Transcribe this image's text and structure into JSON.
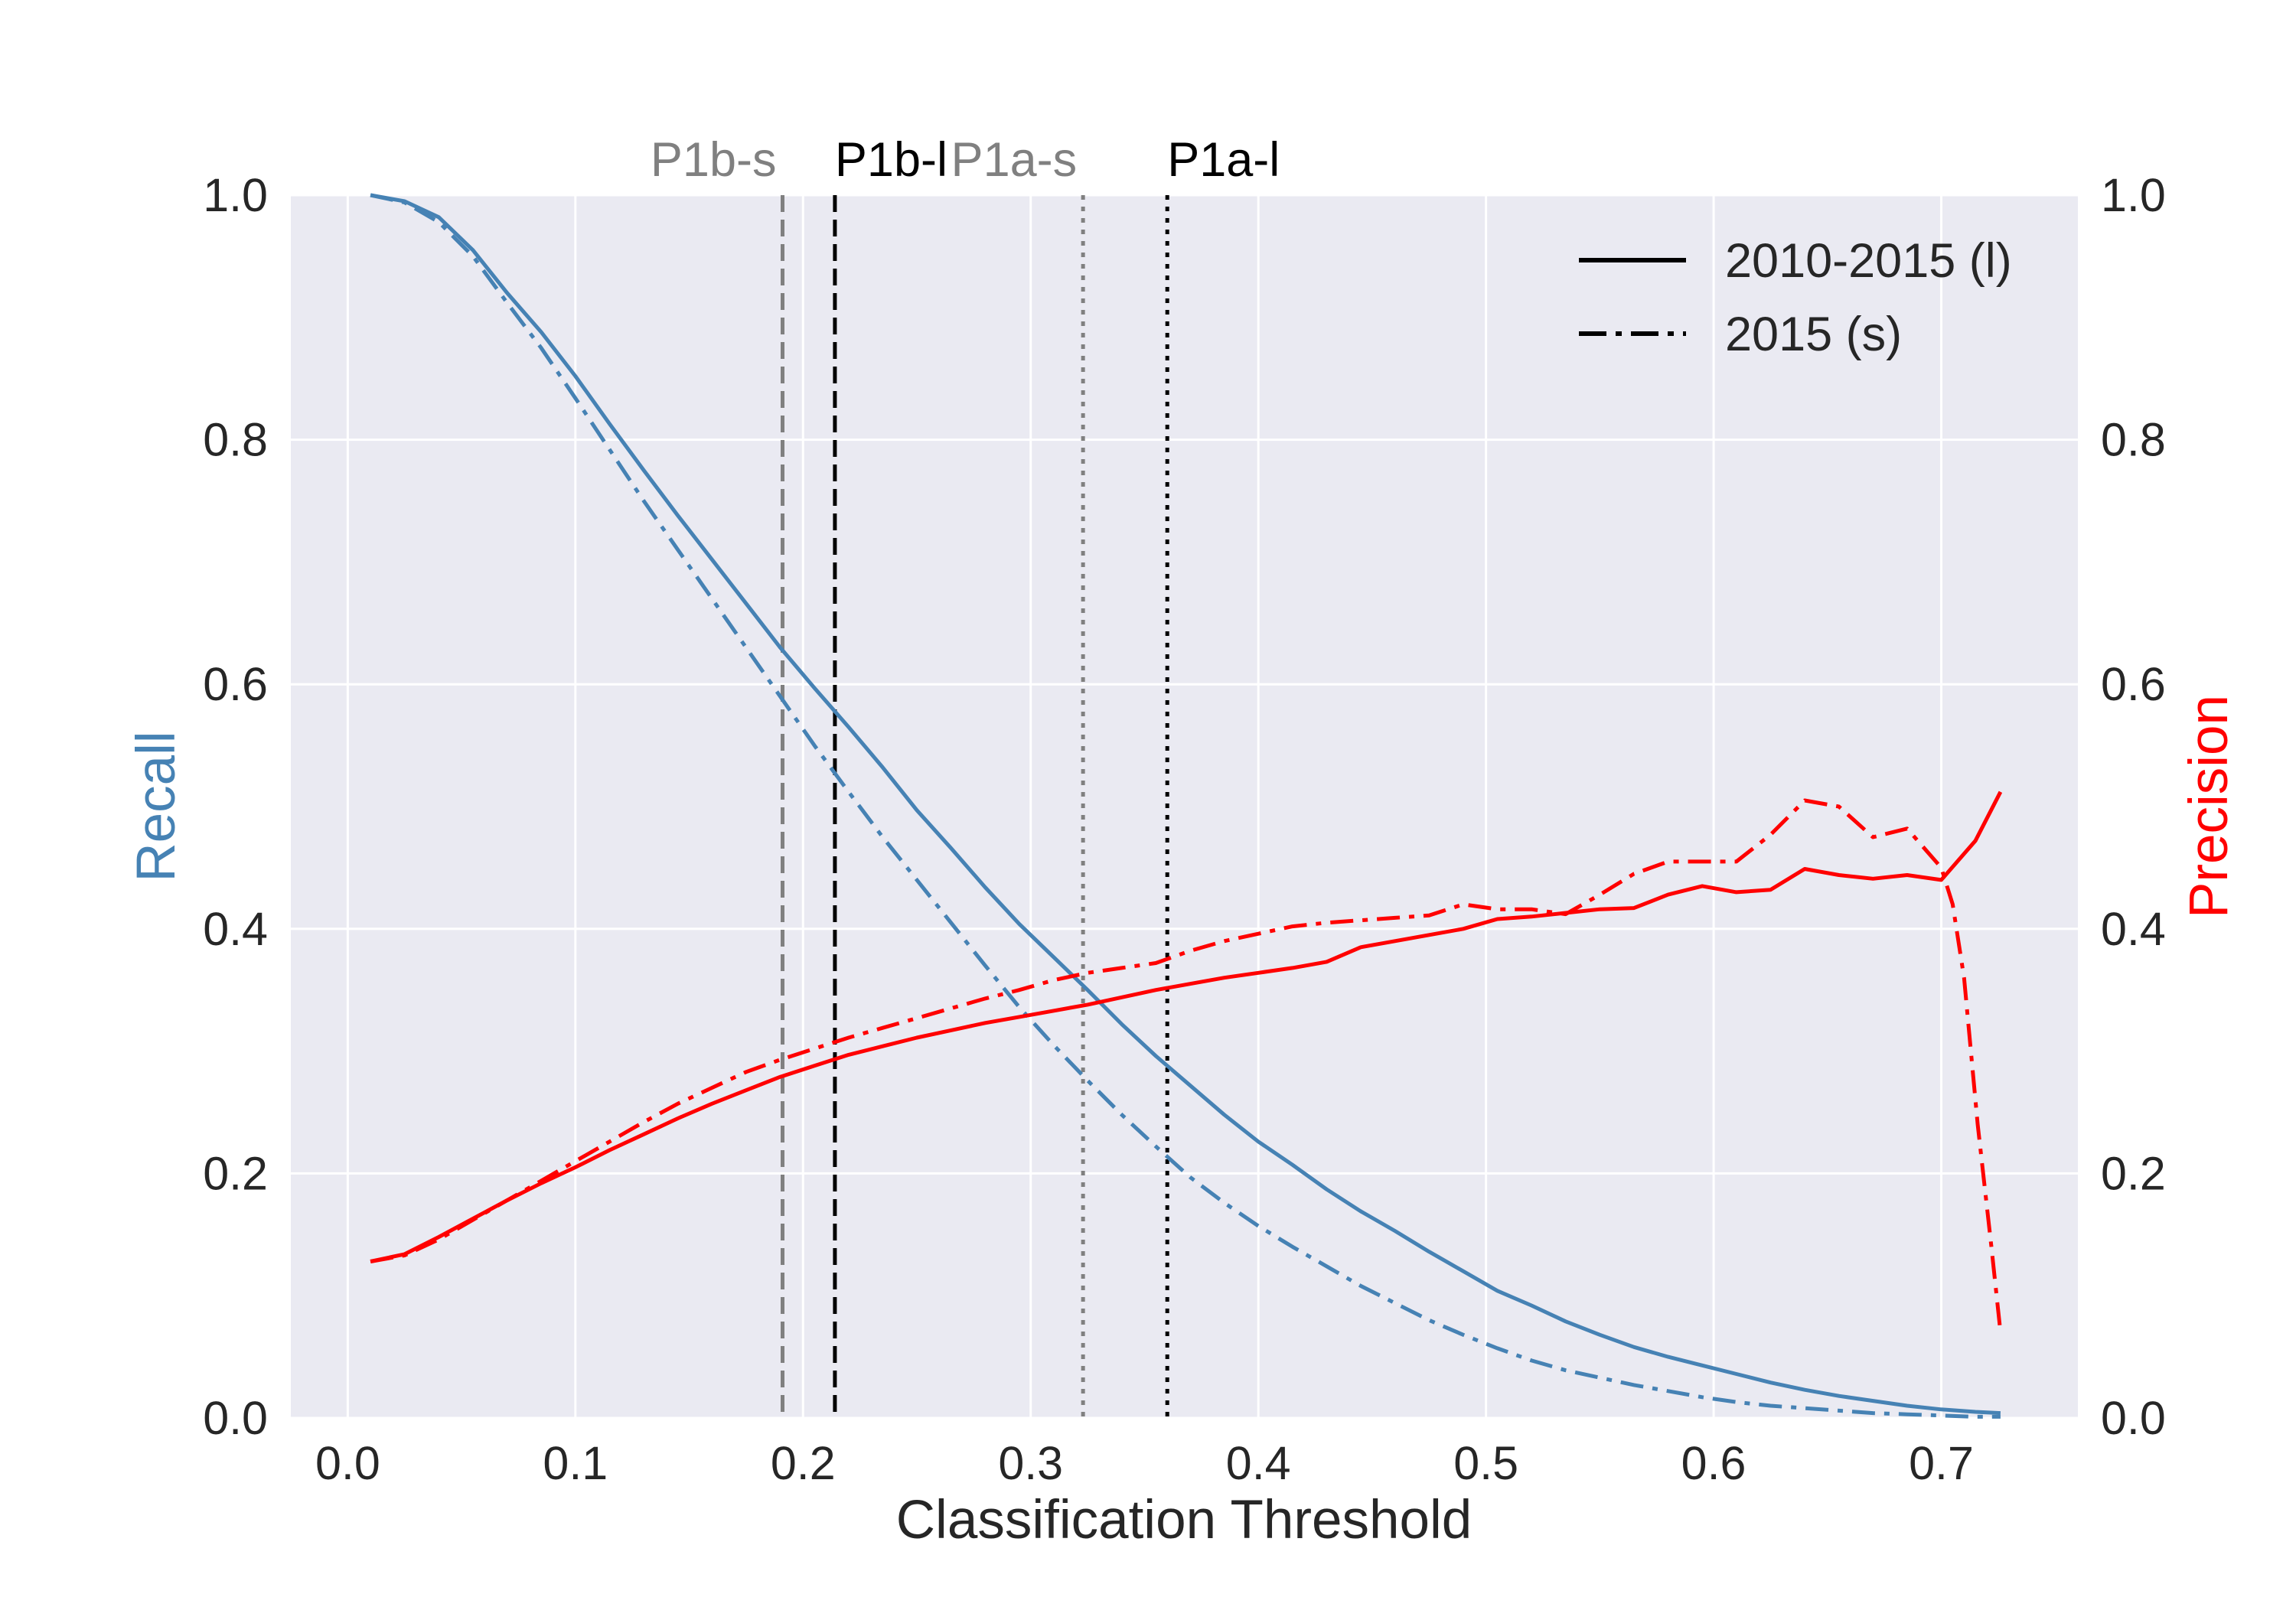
{
  "chart_data": {
    "type": "line",
    "xlabel": "Classification Threshold",
    "ylabel_left": "Recall",
    "ylabel_right": "Precision",
    "xlim": [
      -0.025,
      0.76
    ],
    "ylim_left": [
      0.0,
      1.0
    ],
    "ylim_right": [
      0.0,
      1.0
    ],
    "x_ticks": [
      0.0,
      0.1,
      0.2,
      0.3,
      0.4,
      0.5,
      0.6,
      0.7
    ],
    "x_tick_labels": [
      "0.0",
      "0.1",
      "0.2",
      "0.3",
      "0.4",
      "0.5",
      "0.6",
      "0.7"
    ],
    "y_ticks": [
      0.0,
      0.2,
      0.4,
      0.6,
      0.8,
      1.0
    ],
    "y_tick_labels_left": [
      "0.0",
      "0.2",
      "0.4",
      "0.6",
      "0.8",
      "1.0"
    ],
    "y_tick_labels_right": [
      "0.0",
      "0.2",
      "0.4",
      "0.6",
      "0.8",
      "1.0"
    ],
    "grid": true,
    "legend_position": "top-right",
    "colors": {
      "recall": "#4682b4",
      "precision": "#ff0000",
      "background": "#eaeaf2",
      "grid": "#ffffff"
    },
    "legend": [
      {
        "label": "2010-2015 (l)",
        "style": "solid"
      },
      {
        "label": "2015 (s)",
        "style": "dashdot"
      }
    ],
    "vertical_lines": [
      {
        "label": "P1b-s",
        "x": 0.191,
        "style": "dashed",
        "color": "#808080"
      },
      {
        "label": "P1b-l",
        "x": 0.214,
        "style": "dashed",
        "color": "#000000"
      },
      {
        "label": "P1a-s",
        "x": 0.323,
        "style": "dotted",
        "color": "#808080"
      },
      {
        "label": "P1a-l",
        "x": 0.36,
        "style": "dotted",
        "color": "#000000"
      }
    ],
    "series": [
      {
        "axis": "left",
        "style": "solid",
        "color": "#4682b4",
        "x": [
          0.01,
          0.025,
          0.04,
          0.055,
          0.07,
          0.085,
          0.1,
          0.115,
          0.13,
          0.145,
          0.16,
          0.175,
          0.19,
          0.205,
          0.22,
          0.235,
          0.25,
          0.265,
          0.28,
          0.295,
          0.31,
          0.325,
          0.34,
          0.355,
          0.37,
          0.385,
          0.4,
          0.415,
          0.43,
          0.445,
          0.46,
          0.475,
          0.49,
          0.505,
          0.52,
          0.535,
          0.55,
          0.565,
          0.58,
          0.595,
          0.61,
          0.625,
          0.64,
          0.655,
          0.67,
          0.685,
          0.7,
          0.715,
          0.726
        ],
        "y": [
          1.0,
          0.995,
          0.982,
          0.955,
          0.92,
          0.888,
          0.852,
          0.813,
          0.775,
          0.738,
          0.702,
          0.666,
          0.63,
          0.597,
          0.565,
          0.532,
          0.497,
          0.466,
          0.434,
          0.404,
          0.377,
          0.35,
          0.322,
          0.296,
          0.272,
          0.248,
          0.226,
          0.207,
          0.187,
          0.169,
          0.153,
          0.136,
          0.12,
          0.104,
          0.092,
          0.079,
          0.068,
          0.058,
          0.05,
          0.043,
          0.036,
          0.029,
          0.023,
          0.018,
          0.014,
          0.01,
          0.007,
          0.005,
          0.004
        ]
      },
      {
        "axis": "left",
        "style": "dashdot",
        "color": "#4682b4",
        "x": [
          0.01,
          0.025,
          0.04,
          0.055,
          0.07,
          0.085,
          0.1,
          0.115,
          0.13,
          0.145,
          0.16,
          0.175,
          0.19,
          0.205,
          0.22,
          0.235,
          0.25,
          0.265,
          0.28,
          0.295,
          0.31,
          0.325,
          0.34,
          0.355,
          0.37,
          0.385,
          0.4,
          0.415,
          0.43,
          0.445,
          0.46,
          0.475,
          0.49,
          0.505,
          0.52,
          0.535,
          0.55,
          0.565,
          0.58,
          0.595,
          0.61,
          0.625,
          0.64,
          0.655,
          0.67,
          0.685,
          0.7,
          0.715,
          0.726
        ],
        "y": [
          1.0,
          0.994,
          0.978,
          0.95,
          0.912,
          0.875,
          0.834,
          0.792,
          0.75,
          0.71,
          0.67,
          0.63,
          0.59,
          0.55,
          0.512,
          0.475,
          0.44,
          0.405,
          0.37,
          0.336,
          0.305,
          0.276,
          0.248,
          0.222,
          0.197,
          0.176,
          0.157,
          0.14,
          0.124,
          0.108,
          0.094,
          0.08,
          0.068,
          0.057,
          0.047,
          0.039,
          0.033,
          0.027,
          0.022,
          0.017,
          0.013,
          0.01,
          0.008,
          0.006,
          0.004,
          0.003,
          0.002,
          0.001,
          0.001
        ]
      },
      {
        "axis": "right",
        "style": "solid",
        "color": "#ff0000",
        "x": [
          0.01,
          0.025,
          0.04,
          0.055,
          0.07,
          0.085,
          0.1,
          0.115,
          0.13,
          0.145,
          0.16,
          0.175,
          0.19,
          0.205,
          0.22,
          0.235,
          0.25,
          0.265,
          0.28,
          0.295,
          0.31,
          0.325,
          0.34,
          0.355,
          0.37,
          0.385,
          0.4,
          0.415,
          0.43,
          0.445,
          0.46,
          0.475,
          0.49,
          0.505,
          0.52,
          0.535,
          0.55,
          0.565,
          0.58,
          0.595,
          0.61,
          0.625,
          0.64,
          0.655,
          0.67,
          0.685,
          0.7,
          0.715,
          0.726
        ],
        "y": [
          0.128,
          0.134,
          0.148,
          0.163,
          0.178,
          0.192,
          0.205,
          0.219,
          0.232,
          0.245,
          0.257,
          0.268,
          0.279,
          0.288,
          0.297,
          0.304,
          0.311,
          0.317,
          0.323,
          0.328,
          0.333,
          0.338,
          0.344,
          0.35,
          0.355,
          0.36,
          0.364,
          0.368,
          0.373,
          0.385,
          0.39,
          0.395,
          0.4,
          0.408,
          0.41,
          0.413,
          0.416,
          0.417,
          0.428,
          0.435,
          0.43,
          0.432,
          0.449,
          0.444,
          0.441,
          0.444,
          0.44,
          0.472,
          0.512
        ]
      },
      {
        "axis": "right",
        "style": "dashdot",
        "color": "#ff0000",
        "x": [
          0.01,
          0.025,
          0.04,
          0.055,
          0.07,
          0.085,
          0.1,
          0.115,
          0.13,
          0.145,
          0.16,
          0.175,
          0.19,
          0.205,
          0.22,
          0.235,
          0.25,
          0.265,
          0.28,
          0.295,
          0.31,
          0.325,
          0.34,
          0.355,
          0.37,
          0.385,
          0.4,
          0.415,
          0.43,
          0.445,
          0.46,
          0.475,
          0.49,
          0.505,
          0.52,
          0.535,
          0.55,
          0.565,
          0.58,
          0.595,
          0.61,
          0.625,
          0.64,
          0.655,
          0.67,
          0.685,
          0.7,
          0.705,
          0.71,
          0.716,
          0.722,
          0.726
        ],
        "y": [
          0.128,
          0.133,
          0.146,
          0.162,
          0.178,
          0.194,
          0.21,
          0.226,
          0.242,
          0.257,
          0.27,
          0.283,
          0.293,
          0.302,
          0.311,
          0.319,
          0.327,
          0.335,
          0.343,
          0.35,
          0.358,
          0.364,
          0.368,
          0.372,
          0.382,
          0.39,
          0.396,
          0.402,
          0.405,
          0.407,
          0.409,
          0.411,
          0.42,
          0.416,
          0.416,
          0.412,
          0.428,
          0.445,
          0.455,
          0.455,
          0.455,
          0.477,
          0.505,
          0.5,
          0.475,
          0.482,
          0.45,
          0.42,
          0.36,
          0.24,
          0.14,
          0.07
        ]
      }
    ]
  }
}
